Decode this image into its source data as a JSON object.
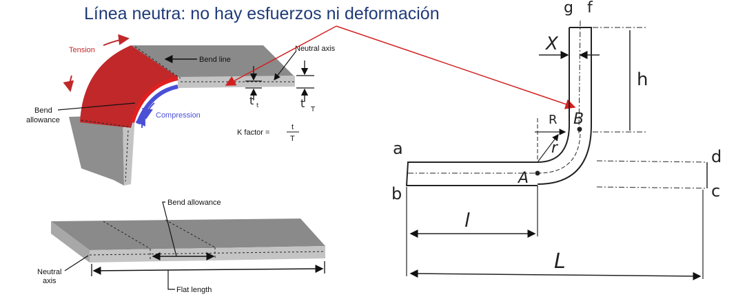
{
  "title": "Línea neutra: no hay esfuerzos ni deformación",
  "top_figure": {
    "tension": "Tension",
    "bend_line": "Bend line",
    "neutral_axis": "Neutral axis",
    "bend_allowance_1": "Bend",
    "bend_allowance_2": "allowance",
    "compression": "Compression",
    "t_small": "t",
    "t_small_sub": "t",
    "t_big": "t",
    "t_big_sub": "T",
    "k_factor": "K factor =",
    "k_num": "t",
    "k_den": "T"
  },
  "bottom_figure": {
    "bend_allowance": "Bend allowance",
    "neutral_axis_1": "Neutral",
    "neutral_axis_2": "axis",
    "flat_length": "Flat length"
  },
  "right_figure": {
    "g": "g",
    "f": "f",
    "x": "X",
    "h": "h",
    "R": "R",
    "r": "r",
    "B": "B",
    "A": "A",
    "a": "a",
    "b": "b",
    "c": "c",
    "d": "d",
    "l": "l",
    "L": "L"
  },
  "colors": {
    "title": "#1f3a78",
    "tension": "#c0282a",
    "compression": "#4a4fd6",
    "arrow": "#d22020",
    "metal_top": "#8a8a8a",
    "metal_side": "#c8c8c8"
  }
}
